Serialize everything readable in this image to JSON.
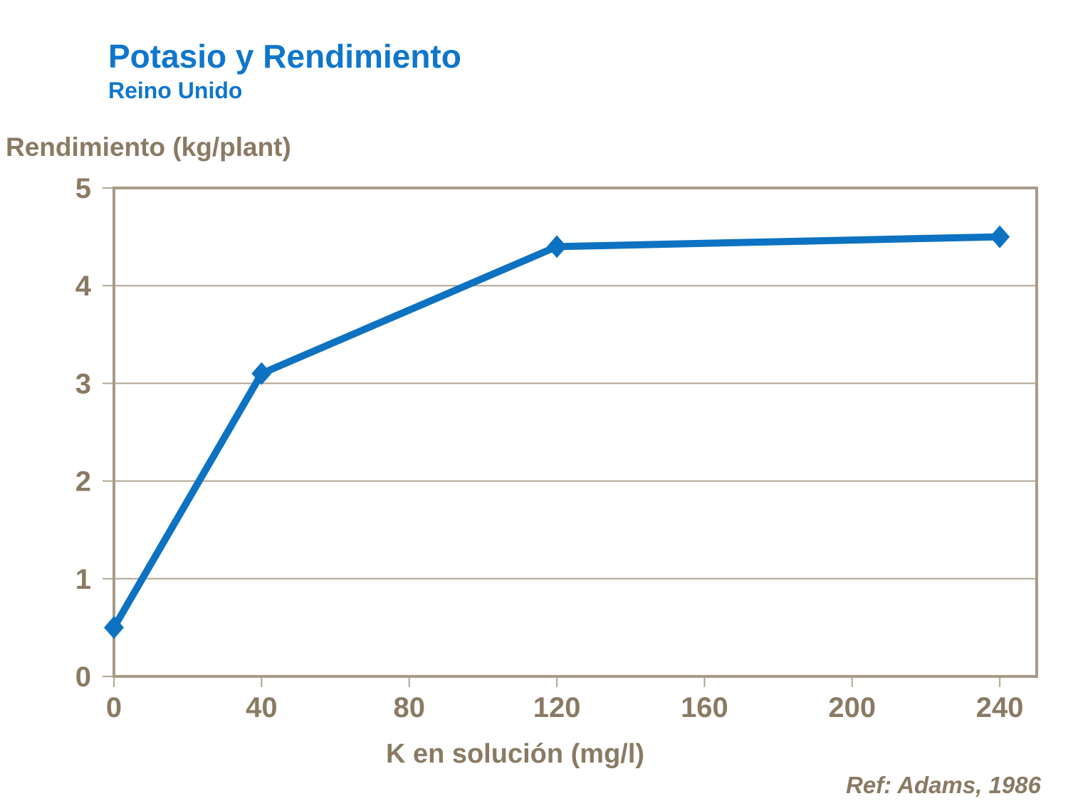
{
  "chart_data": {
    "type": "line",
    "title": "Potasio y Rendimiento",
    "subtitle": "Reino Unido",
    "ylabel": "Rendimiento (kg/plant)",
    "xlabel": "K en solución (mg/l)",
    "annotation": "Ref: Adams, 1986",
    "series": [
      {
        "name": "Rendimiento",
        "x": [
          0,
          40,
          120,
          240
        ],
        "y": [
          0.5,
          3.1,
          4.4,
          4.5
        ]
      }
    ],
    "x_ticks": [
      0,
      40,
      80,
      120,
      160,
      200,
      240
    ],
    "y_ticks": [
      0,
      1,
      2,
      3,
      4,
      5
    ],
    "xlim": [
      0,
      250
    ],
    "ylim": [
      0,
      5
    ],
    "grid": "horizontal-only",
    "legend": "none",
    "marker": "diamond",
    "line_width": 10,
    "colors": {
      "line": "#0d72c1",
      "title_text": "#0e76cc",
      "axis_text": "#8a7a64",
      "axis_frame": "#a89a87",
      "gridline": "#b3a593",
      "background": "#ffffff"
    }
  }
}
